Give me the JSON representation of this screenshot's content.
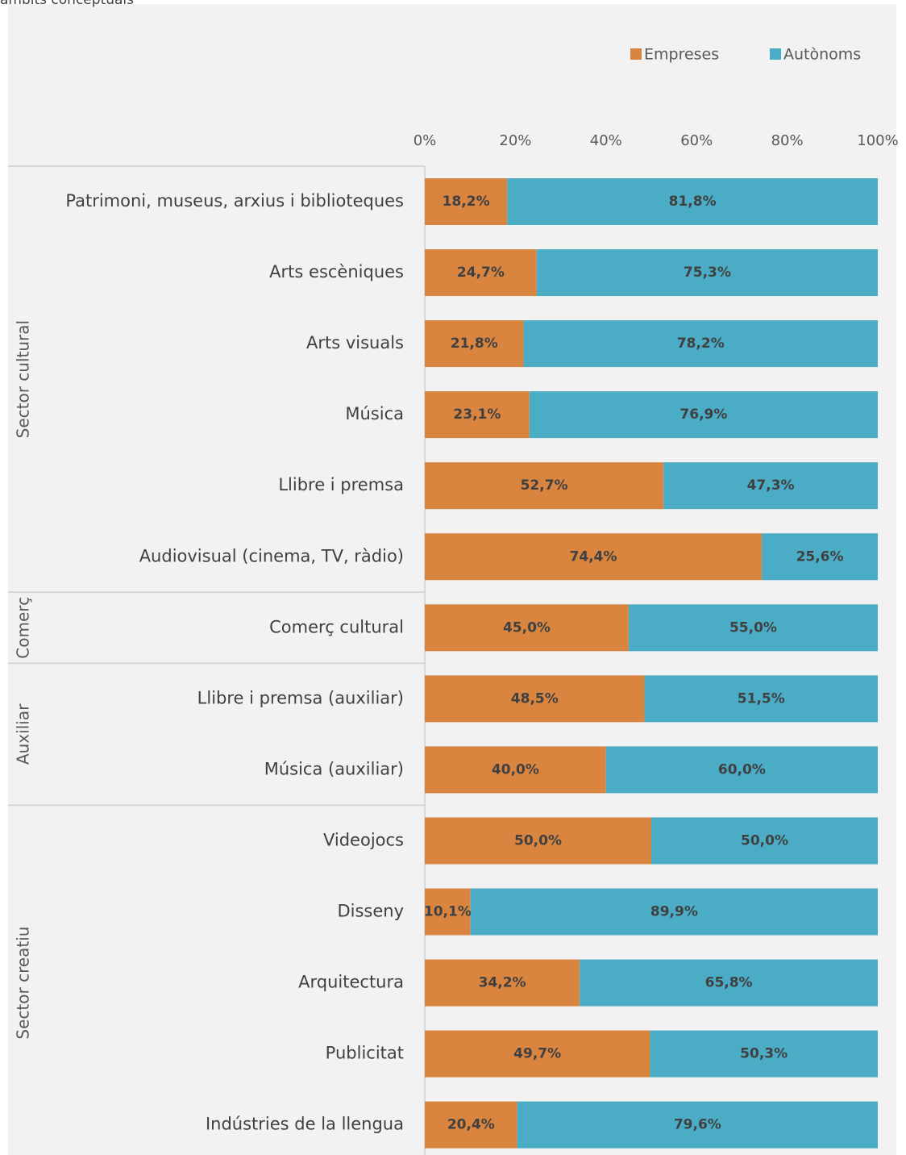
{
  "chart_data": {
    "type": "stacked-bar-horizontal",
    "title": "àmbits conceptuals",
    "groups": [
      {
        "name": "Sector cultural",
        "categories": [
          "Patrimoni, museus, arxius i biblioteques",
          "Arts escèniques",
          "Arts visuals",
          "Música",
          "Llibre i premsa",
          "Audiovisual (cinema, TV, ràdio)"
        ]
      },
      {
        "name": "Comerç",
        "categories": [
          "Comerç cultural"
        ]
      },
      {
        "name": "Auxiliar",
        "categories": [
          "Llibre i premsa (auxiliar)",
          "Música (auxiliar)"
        ]
      },
      {
        "name": "Sector creatiu",
        "categories": [
          "Videojocs",
          "Disseny",
          "Arquitectura",
          "Publicitat",
          "Indústries de la llengua"
        ]
      }
    ],
    "series": [
      {
        "name": "Empreses",
        "color": "#d9843f",
        "values": [
          18.2,
          24.7,
          21.8,
          23.1,
          52.7,
          74.4,
          45.0,
          48.5,
          40.0,
          50.0,
          10.1,
          34.2,
          49.7,
          20.4
        ],
        "value_labels": [
          "18,2%",
          "24,7%",
          "21,8%",
          "23,1%",
          "52,7%",
          "74,4%",
          "45,0%",
          "48,5%",
          "40,0%",
          "50,0%",
          "10,1%",
          "34,2%",
          "49,7%",
          "20,4%"
        ]
      },
      {
        "name": "Autònoms",
        "color": "#4bacc6",
        "values": [
          81.8,
          75.3,
          78.2,
          76.9,
          47.3,
          25.6,
          55.0,
          51.5,
          60.0,
          50.0,
          89.9,
          65.8,
          50.3,
          79.6
        ],
        "value_labels": [
          "81,8%",
          "75,3%",
          "78,2%",
          "76,9%",
          "47,3%",
          "25,6%",
          "55,0%",
          "51,5%",
          "60,0%",
          "50,0%",
          "89,9%",
          "65,8%",
          "50,3%",
          "79,6%"
        ]
      }
    ],
    "xlim": [
      0,
      100
    ],
    "xticks": [
      {
        "value": 0,
        "label": "0%"
      },
      {
        "value": 20,
        "label": "20%"
      },
      {
        "value": 40,
        "label": "40%"
      },
      {
        "value": 60,
        "label": "60%"
      },
      {
        "value": 80,
        "label": "80%"
      },
      {
        "value": 100,
        "label": "100%"
      }
    ],
    "legend": "top-right"
  }
}
